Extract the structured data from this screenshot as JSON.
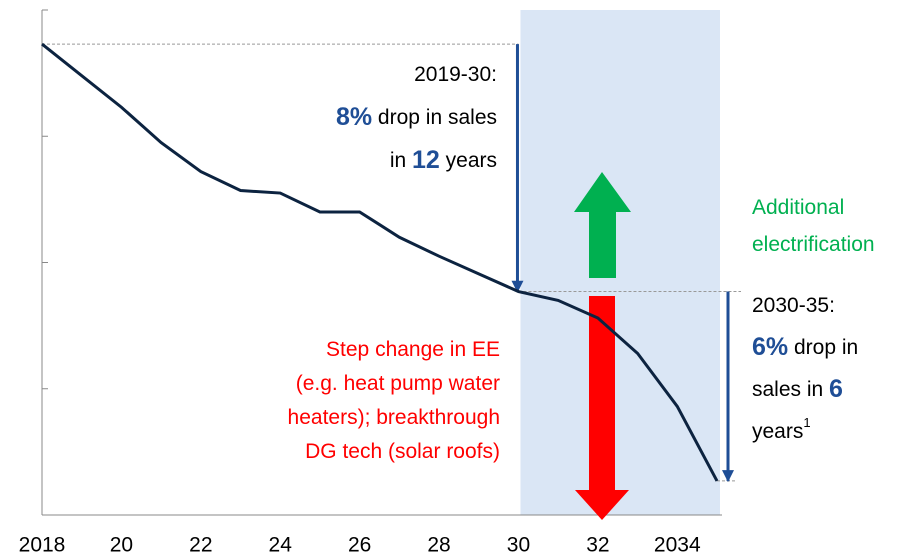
{
  "chart_data": {
    "type": "line",
    "x": [
      2018,
      2019,
      2020,
      2021,
      2022,
      2023,
      2024,
      2025,
      2026,
      2027,
      2028,
      2029,
      2030,
      2031,
      2032,
      2033,
      2034,
      2035
    ],
    "series": [
      {
        "color": "#0c2340",
        "values": [
          3.73,
          3.48,
          3.23,
          2.95,
          2.72,
          2.57,
          2.55,
          2.4,
          2.4,
          2.2,
          2.05,
          1.91,
          1.77,
          1.7,
          1.56,
          1.28,
          0.86,
          0.27
        ]
      }
    ],
    "xlim": [
      2018,
      2035
    ],
    "xticks": [
      {
        "value": 2018,
        "label": "2018"
      },
      {
        "value": 2020,
        "label": "20"
      },
      {
        "value": 2022,
        "label": "22"
      },
      {
        "value": 2024,
        "label": "24"
      },
      {
        "value": 2026,
        "label": "26"
      },
      {
        "value": 2028,
        "label": "28"
      },
      {
        "value": 2030,
        "label": "30"
      },
      {
        "value": 2032,
        "label": "32"
      },
      {
        "value": 2034,
        "label": "2034"
      }
    ],
    "ylim": [
      0,
      4
    ],
    "yticks": [
      0,
      1,
      2,
      3,
      4
    ],
    "shade": [
      2030,
      2035
    ],
    "shade_color": "#dae6f5",
    "annotations": [
      {
        "color": "#000000",
        "highlight": "#1f4e96",
        "anchor": "end",
        "lines": [
          [
            {
              "text": "2019-30:"
            }
          ],
          [
            {
              "text": "8%",
              "bold": true
            },
            {
              "text": " drop in sales"
            }
          ],
          [
            {
              "text": "in "
            },
            {
              "text": "12",
              "bold": true
            },
            {
              "text": " years"
            }
          ]
        ]
      },
      {
        "color": "#00b050",
        "anchor": "start",
        "lines": [
          [
            {
              "text": "Additional"
            }
          ],
          [
            {
              "text": "electrification"
            }
          ]
        ]
      },
      {
        "color": "#000000",
        "highlight": "#1f4e96",
        "anchor": "start",
        "lines": [
          [
            {
              "text": "2030-35:"
            }
          ],
          [
            {
              "text": "6%",
              "bold": true
            },
            {
              "text": " drop in"
            }
          ],
          [
            {
              "text": "sales in "
            },
            {
              "text": "6",
              "bold": true
            }
          ],
          [
            {
              "text": "years"
            },
            {
              "text": "1",
              "sup": true
            }
          ]
        ]
      },
      {
        "color": "#ff0000",
        "anchor": "end",
        "lines": [
          [
            {
              "text": "Step change in EE"
            }
          ],
          [
            {
              "text": "(e.g. heat pump water"
            }
          ],
          [
            {
              "text": "heaters); breakthrough"
            }
          ],
          [
            {
              "text": "DG tech (solar roofs)"
            }
          ]
        ]
      }
    ]
  }
}
